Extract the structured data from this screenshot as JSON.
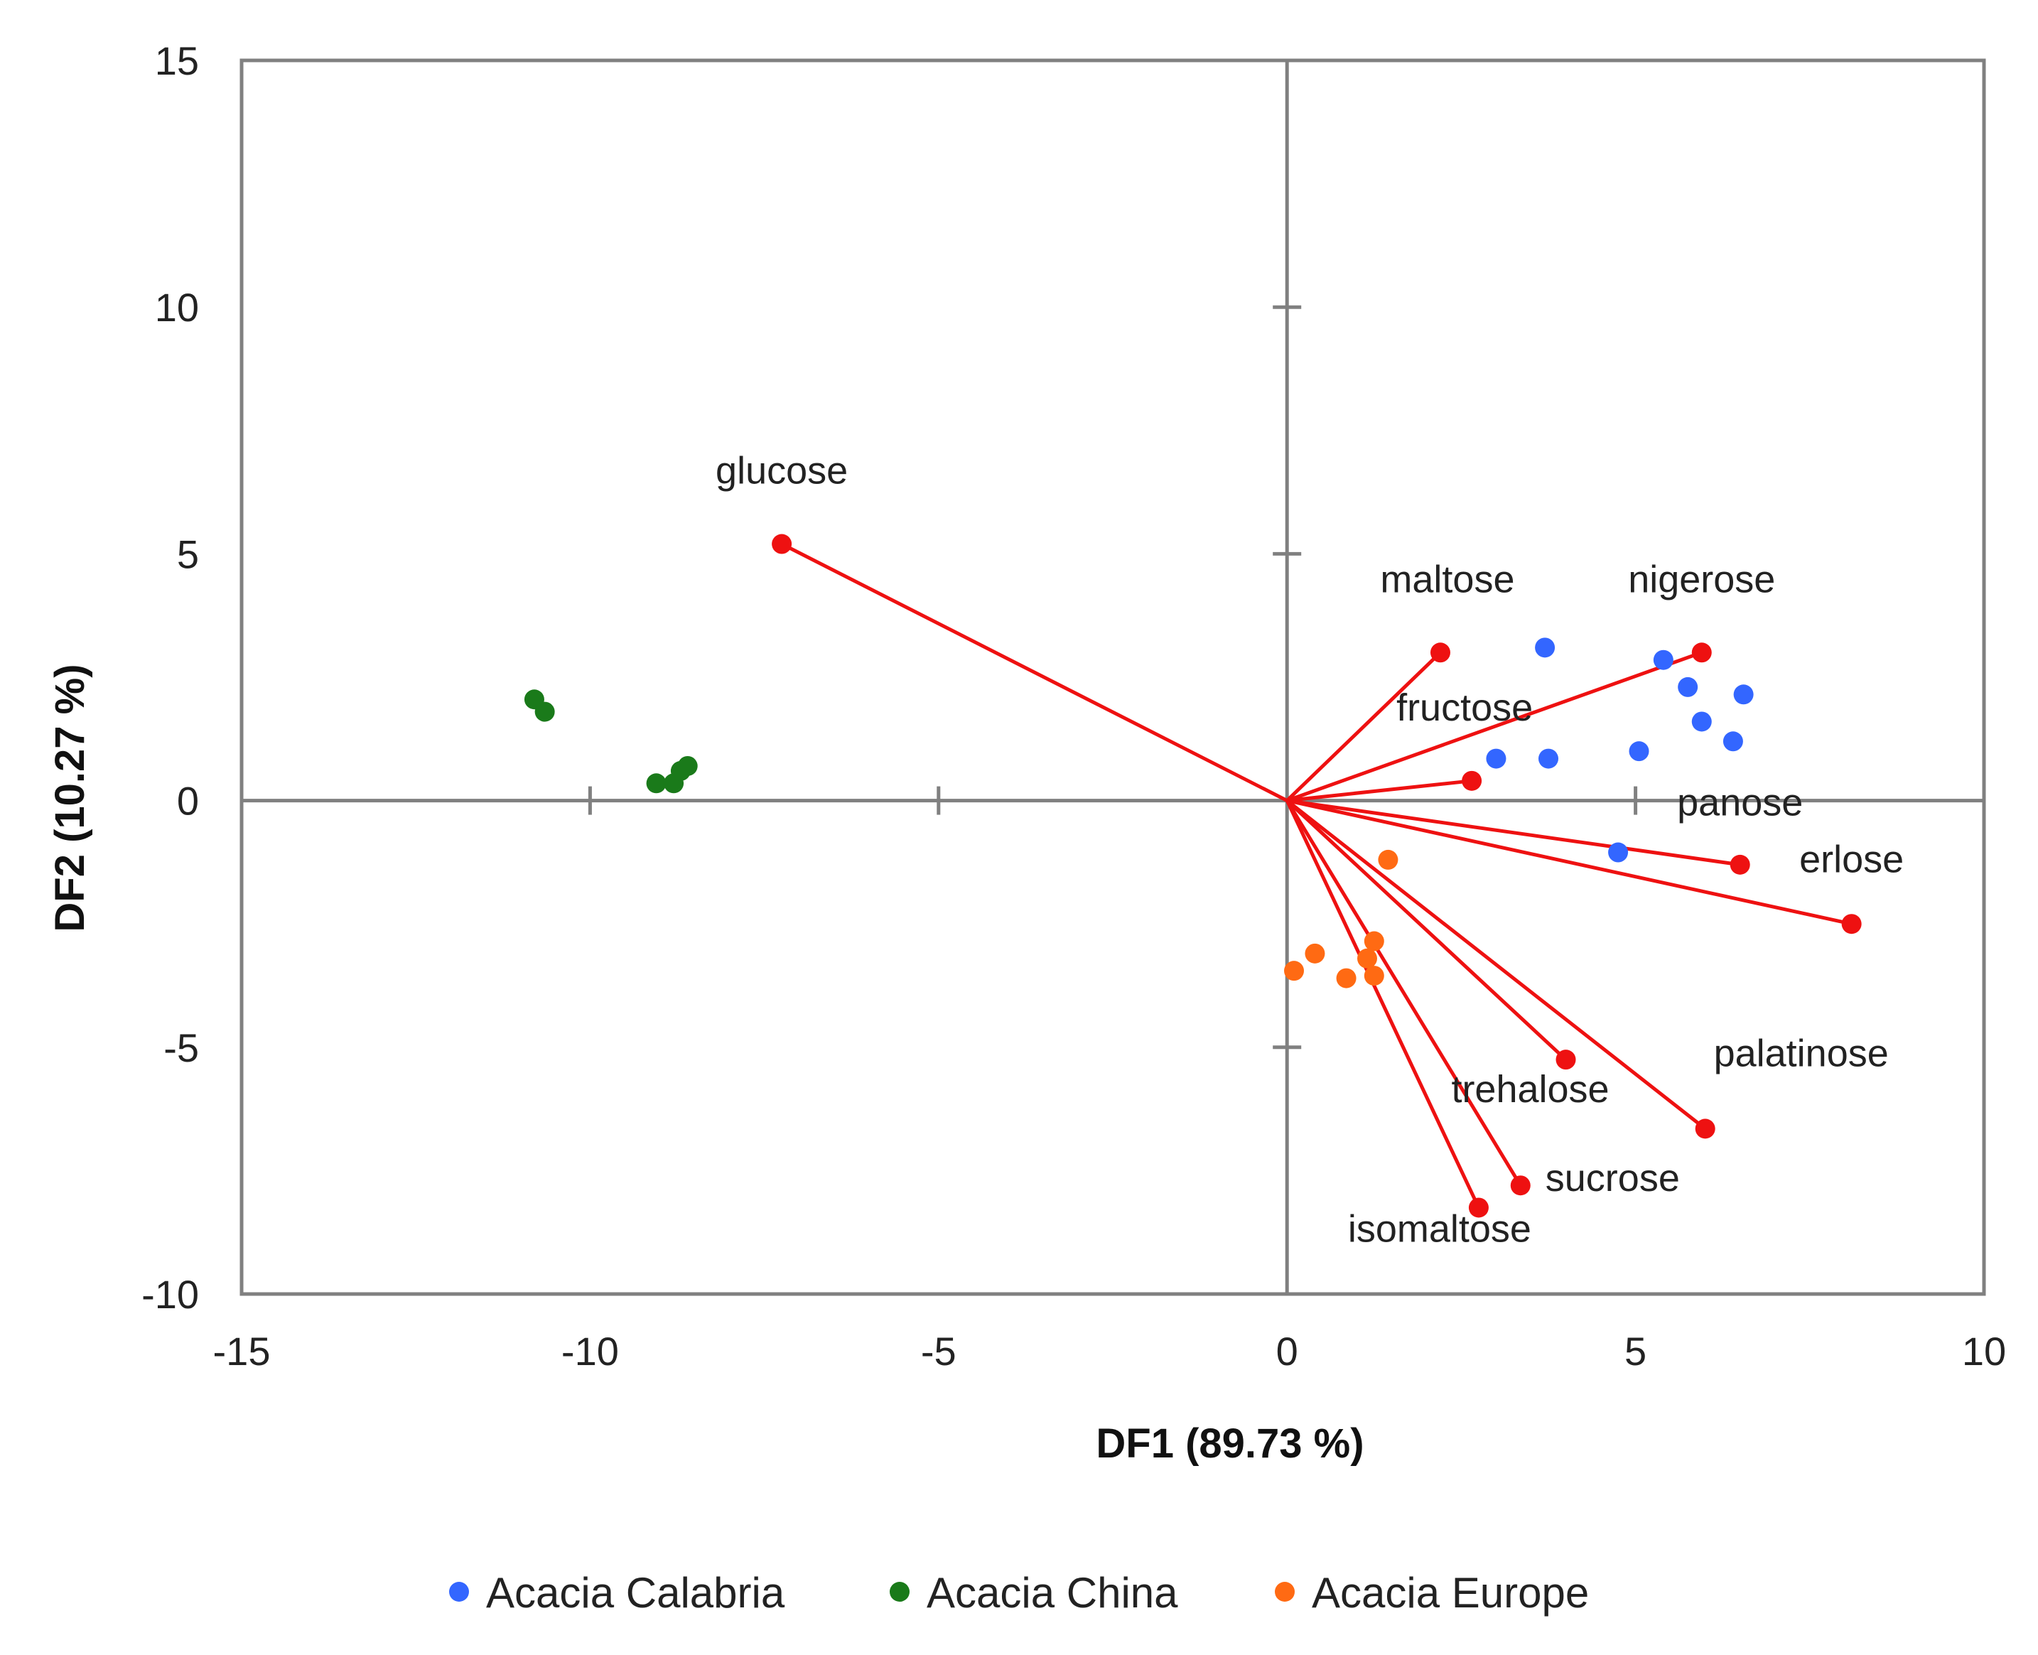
{
  "chart_data": {
    "type": "scatter",
    "subtype": "discriminant-analysis biplot",
    "xlabel": "DF1 (89.73 %)",
    "ylabel": "DF2 (10.27 %)",
    "xlim": [
      -15,
      10
    ],
    "ylim": [
      -10,
      15
    ],
    "x_ticks": [
      -15,
      -10,
      -5,
      0,
      5,
      10
    ],
    "y_ticks": [
      -10,
      -5,
      0,
      5,
      10,
      15
    ],
    "legend_position": "bottom",
    "colors": {
      "calabria": "#3366ff",
      "china": "#1a7a1a",
      "europe": "#ff6a13",
      "vector": "#ee1111",
      "axes": "#808080"
    },
    "series": [
      {
        "name": "Acacia Calabria",
        "color_key": "calabria",
        "points": [
          [
            3.7,
            3.1
          ],
          [
            5.4,
            2.85
          ],
          [
            5.75,
            2.3
          ],
          [
            6.55,
            2.15
          ],
          [
            5.95,
            1.6
          ],
          [
            6.4,
            1.2
          ],
          [
            5.05,
            1.0
          ],
          [
            3.0,
            0.85
          ],
          [
            3.75,
            0.85
          ],
          [
            4.75,
            -1.05
          ]
        ]
      },
      {
        "name": "Acacia China",
        "color_key": "china",
        "points": [
          [
            -10.8,
            2.05
          ],
          [
            -10.65,
            1.8
          ],
          [
            -9.05,
            0.35
          ],
          [
            -8.8,
            0.35
          ],
          [
            -8.7,
            0.6
          ],
          [
            -8.6,
            0.7
          ]
        ]
      },
      {
        "name": "Acacia Europe",
        "color_key": "europe",
        "points": [
          [
            1.45,
            -1.2
          ],
          [
            1.25,
            -2.85
          ],
          [
            1.15,
            -3.2
          ],
          [
            0.4,
            -3.1
          ],
          [
            0.1,
            -3.45
          ],
          [
            0.85,
            -3.6
          ],
          [
            1.25,
            -3.55
          ]
        ]
      }
    ],
    "vectors": [
      {
        "name": "glucose",
        "x": -7.25,
        "y": 5.2
      },
      {
        "name": "maltose",
        "x": 2.2,
        "y": 3.0
      },
      {
        "name": "nigerose",
        "x": 5.95,
        "y": 3.0
      },
      {
        "name": "fructose",
        "x": 2.65,
        "y": 0.4
      },
      {
        "name": "panose",
        "x": 6.5,
        "y": -1.3
      },
      {
        "name": "erlose",
        "x": 8.1,
        "y": -2.5
      },
      {
        "name": "palatinose",
        "x": 6.0,
        "y": -6.65
      },
      {
        "name": "trehalose",
        "x": 4.0,
        "y": -5.25
      },
      {
        "name": "sucrose",
        "x": 3.35,
        "y": -7.8
      },
      {
        "name": "isomaltose",
        "x": 2.75,
        "y": -8.25
      }
    ]
  }
}
